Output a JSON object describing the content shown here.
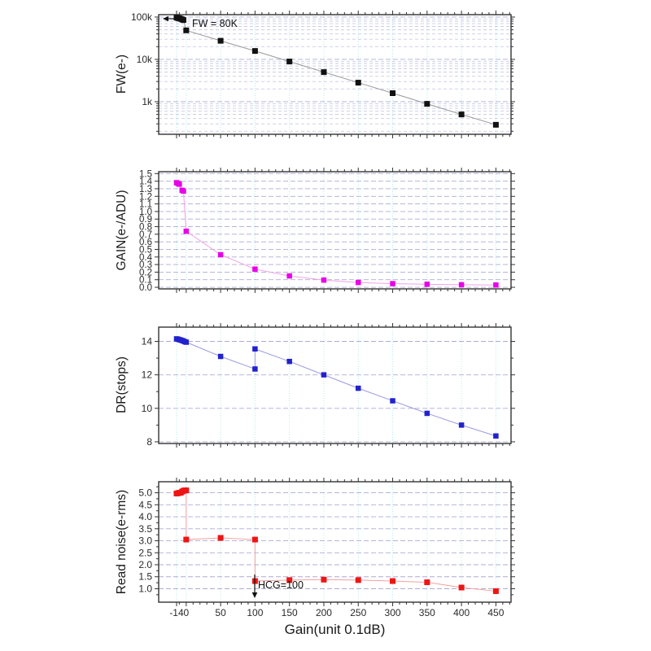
{
  "figure": {
    "xlabel": "Gain(unit 0.1dB)",
    "xlim": [
      -40,
      472
    ],
    "x_ticks": [
      {
        "v": -14,
        "label": "-14"
      },
      {
        "v": 0,
        "label": "0"
      },
      {
        "v": 50,
        "label": "50"
      },
      {
        "v": 100,
        "label": "100"
      },
      {
        "v": 150,
        "label": "150"
      },
      {
        "v": 200,
        "label": "200"
      },
      {
        "v": 250,
        "label": "250"
      },
      {
        "v": 300,
        "label": "300"
      },
      {
        "v": 350,
        "label": "350"
      },
      {
        "v": 400,
        "label": "400"
      },
      {
        "v": 450,
        "label": "450"
      }
    ],
    "x_minor_step": 10,
    "colors": {
      "frame": "#333333",
      "grid_vertical": "#b2ebeb",
      "grid_horizontal": "#9898cc",
      "annotation": "#111111"
    }
  },
  "chart_data": [
    {
      "type": "line",
      "name": "full-well",
      "ylabel": "FW(e-)",
      "yscale": "log",
      "ylim": [
        170,
        114000
      ],
      "yticks": [
        {
          "v": 1000,
          "label": "1k"
        },
        {
          "v": 10000,
          "label": "10k"
        },
        {
          "v": 100000,
          "label": "100k"
        }
      ],
      "yticks_minor": [],
      "marker_color": "#111111",
      "line_color": "#9a9a9a",
      "marker_size": 7,
      "x": [
        -14,
        -12,
        -10,
        -8,
        -6,
        -4,
        0,
        50,
        100,
        150,
        200,
        250,
        300,
        350,
        400,
        450
      ],
      "y": [
        97000,
        95000,
        93000,
        91000,
        88000,
        85000,
        48500,
        27500,
        15800,
        8900,
        5000,
        2820,
        1590,
        890,
        500,
        285
      ],
      "annotation": {
        "text": "FW = 80K",
        "arrow": [
          215,
          23,
          204,
          23
        ]
      }
    },
    {
      "type": "line",
      "name": "gain",
      "ylabel": "GAIN(e-/ADU)",
      "yscale": "linear",
      "ylim": [
        -0.021,
        1.525
      ],
      "yticks": [
        {
          "v": 0.0,
          "label": "0.0"
        },
        {
          "v": 0.1,
          "label": "0.1"
        },
        {
          "v": 0.2,
          "label": "0.2"
        },
        {
          "v": 0.3,
          "label": "0.3"
        },
        {
          "v": 0.4,
          "label": "0.4"
        },
        {
          "v": 0.5,
          "label": "0.5"
        },
        {
          "v": 0.6,
          "label": "0.6"
        },
        {
          "v": 0.7,
          "label": "0.7"
        },
        {
          "v": 0.8,
          "label": "0.8"
        },
        {
          "v": 0.9,
          "label": "0.9"
        },
        {
          "v": 1.0,
          "label": "1.0"
        },
        {
          "v": 1.1,
          "label": "1.1"
        },
        {
          "v": 1.2,
          "label": "1.2"
        },
        {
          "v": 1.3,
          "label": "1.3"
        },
        {
          "v": 1.4,
          "label": "1.4"
        },
        {
          "v": 1.5,
          "label": "1.5"
        }
      ],
      "yticks_minor": [],
      "marker_color": "#e800e8",
      "line_color": "#f2a0e8",
      "marker_size": 6.5,
      "x": [
        -14,
        -12,
        -10,
        -6,
        -4,
        0,
        50,
        100,
        150,
        200,
        250,
        300,
        350,
        400,
        450
      ],
      "y": [
        1.38,
        1.37,
        1.36,
        1.28,
        1.27,
        0.74,
        0.43,
        0.24,
        0.15,
        0.095,
        0.063,
        0.048,
        0.04,
        0.034,
        0.03
      ]
    },
    {
      "type": "line",
      "name": "dynamic-range",
      "ylabel": "DR(stops)",
      "yscale": "linear",
      "ylim": [
        7.9,
        14.85
      ],
      "yticks": [
        {
          "v": 8,
          "label": "8"
        },
        {
          "v": 10,
          "label": "10"
        },
        {
          "v": 12,
          "label": "12"
        },
        {
          "v": 14,
          "label": "14"
        }
      ],
      "yticks_minor": [
        9,
        11,
        13
      ],
      "marker_color": "#2222cc",
      "line_color": "#9a9ae0",
      "marker_size": 6.5,
      "x": [
        -14,
        -12,
        -10,
        -8,
        -6,
        -4,
        -2,
        0,
        50,
        100,
        100,
        150,
        200,
        250,
        300,
        350,
        400,
        450
      ],
      "y": [
        14.15,
        14.13,
        14.1,
        14.08,
        14.05,
        14.02,
        13.98,
        13.95,
        13.1,
        12.35,
        13.55,
        12.8,
        12.0,
        11.2,
        10.45,
        9.7,
        9.0,
        8.35
      ]
    },
    {
      "type": "line",
      "name": "read-noise",
      "ylabel": "Read noise(e-rms)",
      "yscale": "linear",
      "ylim": [
        0.44,
        5.46
      ],
      "yticks": [
        {
          "v": 1.0,
          "label": "1.0"
        },
        {
          "v": 1.5,
          "label": "1.5"
        },
        {
          "v": 2.0,
          "label": "2.0"
        },
        {
          "v": 2.5,
          "label": "2.5"
        },
        {
          "v": 3.0,
          "label": "3.0"
        },
        {
          "v": 3.5,
          "label": "3.5"
        },
        {
          "v": 4.0,
          "label": "4.0"
        },
        {
          "v": 4.5,
          "label": "4.5"
        },
        {
          "v": 5.0,
          "label": "5.0"
        }
      ],
      "yticks_minor": [
        0.75,
        1.25,
        1.75,
        2.25,
        2.75,
        3.25,
        3.75,
        4.25,
        4.75,
        5.25
      ],
      "marker_color": "#ee1515",
      "line_color": "#f4a0a0",
      "marker_size": 7,
      "x": [
        -14,
        -12,
        -10,
        -8,
        -6,
        -4,
        -2,
        0,
        0,
        50,
        100,
        100,
        150,
        200,
        250,
        300,
        350,
        400,
        450
      ],
      "y": [
        4.97,
        4.98,
        5.0,
        5.0,
        5.05,
        5.08,
        5.1,
        5.1,
        3.05,
        3.12,
        3.05,
        1.32,
        1.36,
        1.38,
        1.36,
        1.32,
        1.27,
        1.05,
        0.9
      ],
      "annotation": {
        "text": "HCG=100",
        "arrow": [
          313,
          706,
          313,
          731
        ]
      }
    }
  ]
}
